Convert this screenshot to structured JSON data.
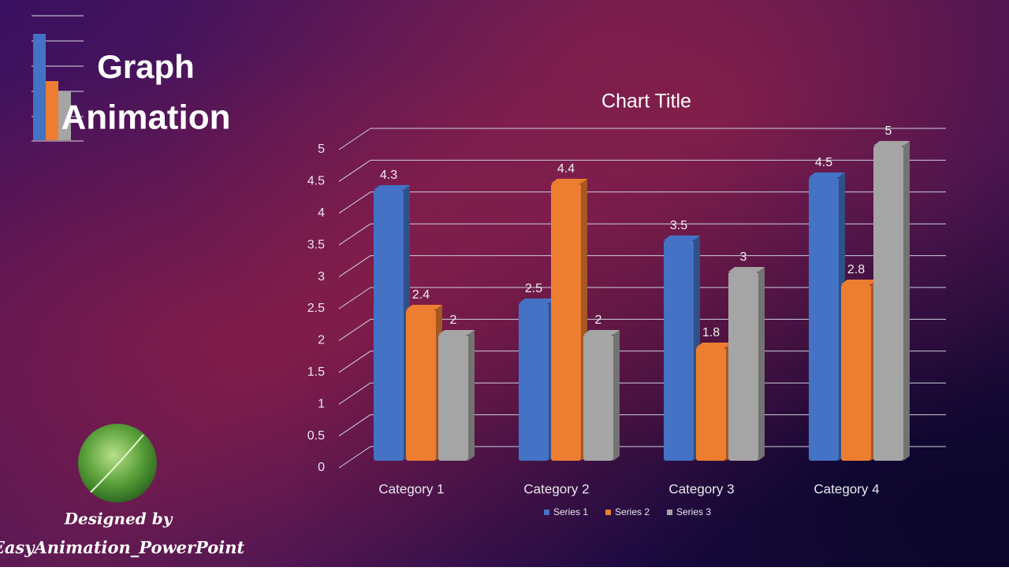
{
  "slide": {
    "title_line1": "Graph",
    "title_line2": "Animation",
    "credit_line1": "Designed by",
    "credit_line2": "EasyAnimation_PowerPoint"
  },
  "chart_data": {
    "type": "bar",
    "title": "Chart Title",
    "categories": [
      "Category 1",
      "Category 2",
      "Category 3",
      "Category 4"
    ],
    "series": [
      {
        "name": "Series 1",
        "color": "#4472c4",
        "values": [
          4.3,
          2.5,
          3.5,
          4.5
        ]
      },
      {
        "name": "Series 2",
        "color": "#ed7d31",
        "values": [
          2.4,
          4.4,
          1.8,
          2.8
        ]
      },
      {
        "name": "Series 3",
        "color": "#a5a5a5",
        "values": [
          2,
          2,
          3,
          5
        ]
      }
    ],
    "ylim": [
      0,
      5
    ],
    "yticks": [
      0,
      0.5,
      1,
      1.5,
      2,
      2.5,
      3,
      3.5,
      4,
      4.5,
      5
    ],
    "grid": true,
    "legend": "bottom"
  }
}
